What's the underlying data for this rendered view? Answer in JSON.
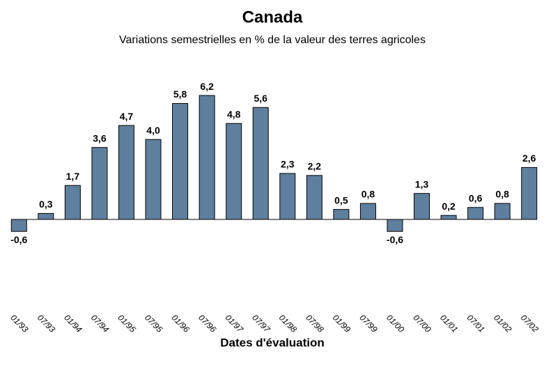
{
  "chart_data": {
    "type": "bar",
    "title": "Canada",
    "subtitle": "Variations semestrielles en % de la valeur des terres agricoles",
    "x_label": "Dates d'évaluation",
    "categories": [
      "01/93",
      "07/93",
      "01/94",
      "07/94",
      "01/95",
      "07/95",
      "01/96",
      "07/96",
      "01/97",
      "07/97",
      "01/98",
      "07/98",
      "01/99",
      "07/99",
      "01/00",
      "07/00",
      "01/01",
      "07/01",
      "01/02",
      "07/02"
    ],
    "values": [
      -0.6,
      0.3,
      1.7,
      3.6,
      4.7,
      4.0,
      5.8,
      6.2,
      4.8,
      5.6,
      2.3,
      2.2,
      0.5,
      0.8,
      -0.6,
      1.3,
      0.2,
      0.6,
      0.8,
      2.6
    ],
    "value_labels": [
      "-0,6",
      "0,3",
      "1,7",
      "3,6",
      "4,7",
      "4,0",
      "5,8",
      "6,2",
      "4,8",
      "5,6",
      "2,3",
      "2,2",
      "0,5",
      "0,8",
      "-0,6",
      "1,3",
      "0,2",
      "0,6",
      "0,8",
      "2,6"
    ],
    "color": "#5f7f9e"
  }
}
